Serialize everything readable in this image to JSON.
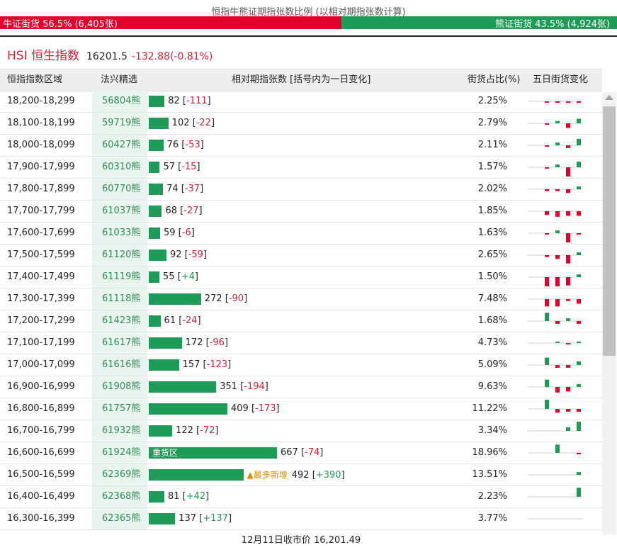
{
  "top_title": "恒指牛熊证期指张数比例 (以相对期指张数计算)",
  "ratio": {
    "bull_label": "牛证街货 56.5% (6,405张)",
    "bull_fraction": 0.565,
    "bear_label": "熊证街货 43.5% (4,924张)",
    "bear_fraction": 0.435,
    "bull_color": "#e4002b",
    "bear_color": "#1e9b57"
  },
  "index": {
    "name": "HSI 恒生指数",
    "price": "16201.5",
    "change": "-132.88(-0.81%)"
  },
  "header": {
    "range": "恒指指数区域",
    "code": "法兴精选",
    "contracts": "相对期指张数 [括号内为一日变化]",
    "pct": "街货占比(%)",
    "five_day": "五日街货变化"
  },
  "rows": [
    {
      "range": "18,200-18,299",
      "code": "56804熊",
      "value": 82,
      "value_text": "82",
      "change_text": "-111",
      "change_sign": "neg",
      "pct": "2.25%",
      "spark": [
        -0.15,
        -0.15,
        -0.15,
        -0.15,
        -1
      ]
    },
    {
      "range": "18,100-18,199",
      "code": "59719熊",
      "value": 102,
      "value_text": "102",
      "change_text": "-22",
      "change_sign": "neg",
      "pct": "2.79%",
      "spark": [
        -0.15,
        0.25,
        -0.5,
        0.5,
        -1
      ]
    },
    {
      "range": "18,000-18,099",
      "code": "60427熊",
      "value": 76,
      "value_text": "76",
      "change_text": "-53",
      "change_sign": "neg",
      "pct": "2.11%",
      "spark": [
        -0.15,
        0.3,
        -0.3,
        0.7,
        -1
      ]
    },
    {
      "range": "17,900-17,999",
      "code": "60310熊",
      "value": 57,
      "value_text": "57",
      "change_text": "-15",
      "change_sign": "neg",
      "pct": "1.57%",
      "spark": [
        -0.15,
        0.3,
        -1,
        0.6,
        -1
      ]
    },
    {
      "range": "17,800-17,899",
      "code": "60770熊",
      "value": 74,
      "value_text": "74",
      "change_text": "-37",
      "change_sign": "neg",
      "pct": "2.02%",
      "spark": [
        -0.2,
        -0.2,
        -0.4,
        0.3,
        -1
      ]
    },
    {
      "range": "17,700-17,799",
      "code": "61037熊",
      "value": 68,
      "value_text": "68",
      "change_text": "-27",
      "change_sign": "neg",
      "pct": "1.85%",
      "spark": [
        -0.4,
        -0.6,
        -0.5,
        -0.5,
        -1
      ]
    },
    {
      "range": "17,600-17,699",
      "code": "61033熊",
      "value": 59,
      "value_text": "59",
      "change_text": "-6",
      "change_sign": "neg",
      "pct": "1.63%",
      "spark": [
        -0.15,
        0.3,
        -1,
        -0.15,
        -0.15
      ]
    },
    {
      "range": "17,500-17,599",
      "code": "61120熊",
      "value": 92,
      "value_text": "92",
      "change_text": "-59",
      "change_sign": "neg",
      "pct": "2.65%",
      "spark": [
        -0.2,
        -0.4,
        -0.9,
        0.3,
        -1
      ]
    },
    {
      "range": "17,400-17,499",
      "code": "61119熊",
      "value": 55,
      "value_text": "55",
      "change_text": "+4",
      "change_sign": "pos",
      "pct": "1.50%",
      "spark": [
        -1,
        -1,
        -0.9,
        0.3,
        0.6
      ]
    },
    {
      "range": "17,300-17,399",
      "code": "61118熊",
      "value": 272,
      "value_text": "272",
      "change_text": "-90",
      "change_sign": "neg",
      "pct": "7.48%",
      "spark": [
        -0.8,
        -0.8,
        -0.2,
        -0.5,
        -1
      ]
    },
    {
      "range": "17,200-17,299",
      "code": "61423熊",
      "value": 61,
      "value_text": "61",
      "change_text": "-24",
      "change_sign": "neg",
      "pct": "1.68%",
      "spark": [
        0.9,
        -0.3,
        0.3,
        -0.3,
        -1
      ]
    },
    {
      "range": "17,100-17,199",
      "code": "61617熊",
      "value": 172,
      "value_text": "172",
      "change_text": "-96",
      "change_sign": "neg",
      "pct": "4.73%",
      "spark": [
        0,
        0.15,
        -0.15,
        0.15,
        -1
      ]
    },
    {
      "range": "17,000-17,099",
      "code": "61616熊",
      "value": 157,
      "value_text": "157",
      "change_text": "-123",
      "change_sign": "neg",
      "pct": "5.09%",
      "spark": [
        0.8,
        -0.3,
        -0.3,
        0.4,
        -1
      ]
    },
    {
      "range": "16,900-16,999",
      "code": "61908熊",
      "value": 351,
      "value_text": "351",
      "change_text": "-194",
      "change_sign": "neg",
      "pct": "9.63%",
      "spark": [
        0.8,
        -0.6,
        -0.5,
        0.3,
        -1
      ]
    },
    {
      "range": "16,800-16,899",
      "code": "61757熊",
      "value": 409,
      "value_text": "409",
      "change_text": "-173",
      "change_sign": "neg",
      "pct": "11.22%",
      "spark": [
        1,
        -0.4,
        -0.3,
        -0.3,
        -0.4
      ]
    },
    {
      "range": "16,700-16,799",
      "code": "61932熊",
      "value": 122,
      "value_text": "122",
      "change_text": "-72",
      "change_sign": "neg",
      "pct": "3.34%",
      "spark": [
        0,
        0,
        0.4,
        1,
        -0.4
      ]
    },
    {
      "range": "16,600-16,699",
      "code": "61924熊",
      "value": 667,
      "value_text": "667",
      "change_text": "-74",
      "change_sign": "neg",
      "pct": "18.96%",
      "label": "重货区",
      "spark": [
        0,
        0.9,
        0,
        -0.15,
        -0.15
      ]
    },
    {
      "range": "16,500-16,599",
      "code": "62369熊",
      "value": 492,
      "value_text": "492",
      "change_text": "+390",
      "change_sign": "pos",
      "pct": "13.51%",
      "tag": "▲最多新增",
      "spark": [
        0,
        0,
        0,
        0.3,
        1
      ]
    },
    {
      "range": "16,400-16,499",
      "code": "62368熊",
      "value": 81,
      "value_text": "81",
      "change_text": "+42",
      "change_sign": "pos",
      "pct": "2.23%",
      "spark": [
        0,
        0,
        0,
        1,
        1
      ]
    },
    {
      "range": "16,300-16,399",
      "code": "62365熊",
      "value": 137,
      "value_text": "137",
      "change_text": "+137",
      "change_sign": "pos",
      "pct": "3.77%",
      "spark": [
        0,
        0,
        0,
        0,
        1
      ]
    }
  ],
  "max_value": 667,
  "footer": "12月11日收市价 16,201.49"
}
